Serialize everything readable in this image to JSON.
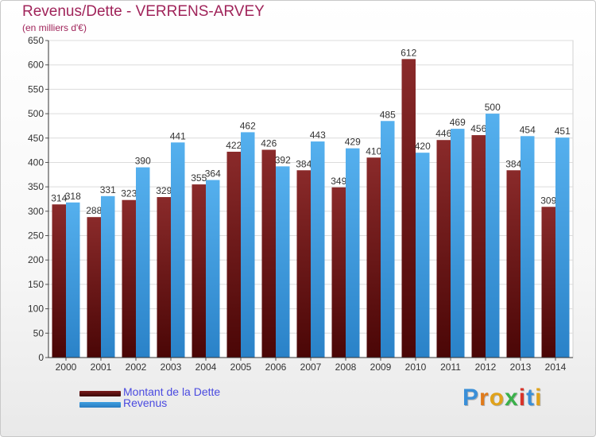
{
  "title": "Revenus/Dette - VERRENS-ARVEY",
  "subtitle": "(en milliers d'€)",
  "logo_text": "Proxiti",
  "colors": {
    "dette": "#7a1a1a",
    "revenus": "#3d9ee0",
    "title": "#a0245a",
    "legend_text": "#4a4ae0"
  },
  "legend": [
    {
      "label": "Montant de la Dette",
      "color": "#7a1a1a"
    },
    {
      "label": "Revenus",
      "color": "#3d9ee0"
    }
  ],
  "chart_data": {
    "type": "bar",
    "categories": [
      "2000",
      "2001",
      "2002",
      "2003",
      "2004",
      "2005",
      "2006",
      "2007",
      "2008",
      "2009",
      "2010",
      "2011",
      "2012",
      "2013",
      "2014"
    ],
    "series": [
      {
        "name": "Montant de la Dette",
        "values": [
          314,
          288,
          323,
          329,
          355,
          422,
          426,
          384,
          349,
          410,
          612,
          446,
          456,
          384,
          309
        ]
      },
      {
        "name": "Revenus",
        "values": [
          318,
          331,
          390,
          441,
          364,
          462,
          392,
          443,
          429,
          485,
          420,
          469,
          500,
          454,
          451
        ]
      }
    ],
    "ylim": [
      0,
      650
    ],
    "yticks": [
      0,
      50,
      100,
      150,
      200,
      250,
      300,
      350,
      400,
      450,
      500,
      550,
      600,
      650
    ],
    "grid": true,
    "legend_position": "bottom-left"
  }
}
